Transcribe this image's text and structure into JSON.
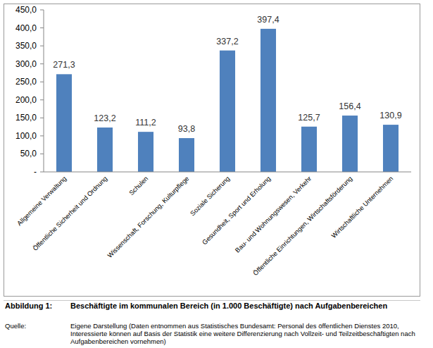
{
  "chart_data": {
    "type": "bar",
    "title": "Beschäftigte im kommunalen Bereich (in 1.000 Beschäftigte) nach Aufgabenbereichen",
    "annotations": [
      "Abbildung 1:",
      "Quelle:",
      "Eigene Darstellung (Daten entnommen aus Statistisches Bundesamt: Personal des öffentlichen Dienstes 2010, Interessierte können auf Basis der Statistik eine weitere Differenzierung nach Vollzeit- und Teilzeitbeschäftigten nach Aufgabenbereichen vornehmen)"
    ],
    "categories": [
      "Allgemeine Verwaltung",
      "Öffentliche Sicherheit und Ordnung",
      "Schulen",
      "Wissenschaft, Forschung, Kulturpflege",
      "Soziale Sicherung",
      "Gesundheit, Sport und Erholung",
      "Bau- und Wohnungswesen, Verkehr",
      "Öffentliche Einrichtungen, Wirtschaftsförderung",
      "Wirtschaftliche Unternehmen"
    ],
    "values": [
      271.3,
      123.2,
      111.2,
      93.8,
      337.2,
      397.4,
      125.7,
      156.4,
      130.9
    ],
    "value_labels": [
      "271,3",
      "123,2",
      "111,2",
      "93,8",
      "337,2",
      "397,4",
      "125,7",
      "156,4",
      "130,9"
    ],
    "color": "#4f81bd",
    "data_labels": true,
    "grid": false,
    "ylim": [
      0,
      450
    ],
    "yticks": [
      {
        "value": 0,
        "label": "-"
      },
      {
        "value": 50,
        "label": "50,0"
      },
      {
        "value": 100,
        "label": "100,0"
      },
      {
        "value": 150,
        "label": "150,0"
      },
      {
        "value": 200,
        "label": "200,0"
      },
      {
        "value": 250,
        "label": "250,0"
      },
      {
        "value": 300,
        "label": "300,0"
      },
      {
        "value": 350,
        "label": "350,0"
      },
      {
        "value": 400,
        "label": "400,0"
      },
      {
        "value": 450,
        "label": "450,0"
      }
    ]
  }
}
